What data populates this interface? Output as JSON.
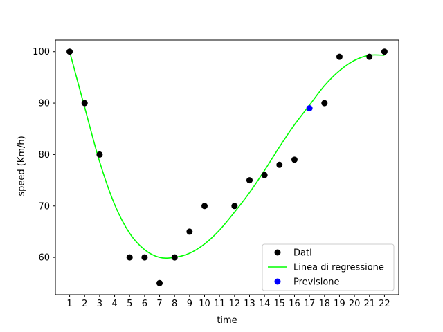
{
  "chart_data": {
    "type": "scatter",
    "xlabel": "time",
    "ylabel": "speed (Km/h)",
    "xlim": [
      0.05,
      22.95
    ],
    "ylim": [
      52.75,
      102.25
    ],
    "xticks": [
      1,
      2,
      3,
      4,
      5,
      6,
      7,
      8,
      9,
      10,
      11,
      12,
      13,
      14,
      15,
      16,
      17,
      18,
      19,
      20,
      21,
      22
    ],
    "yticks": [
      60,
      70,
      80,
      90,
      100
    ],
    "legend_position": "lower-right",
    "series": [
      {
        "name": "Dati",
        "kind": "scatter",
        "color": "#000000",
        "x": [
          1,
          2,
          3,
          5,
          6,
          7,
          8,
          9,
          10,
          12,
          13,
          14,
          15,
          16,
          18,
          19,
          21,
          22
        ],
        "y": [
          100,
          90,
          80,
          60,
          60,
          55,
          60,
          65,
          70,
          70,
          75,
          76,
          78,
          79,
          90,
          99,
          99,
          100
        ]
      },
      {
        "name": "Linea di regressione",
        "kind": "line",
        "color": "#00ff00",
        "x": [
          1,
          2,
          3,
          4,
          5,
          6,
          7,
          8,
          9,
          10,
          11,
          12,
          13,
          14,
          15,
          16,
          17,
          18,
          19,
          20,
          21,
          22
        ],
        "y": [
          100,
          89.2,
          78.6,
          70.3,
          64.7,
          61.5,
          60.0,
          60.0,
          60.8,
          62.6,
          65.3,
          68.8,
          72.6,
          76.9,
          81.5,
          85.8,
          89.6,
          93.4,
          96.3,
          98.3,
          99.3,
          99.3
        ]
      },
      {
        "name": "Previsione",
        "kind": "scatter",
        "color": "#0000ff",
        "x": [
          17
        ],
        "y": [
          89
        ]
      }
    ]
  }
}
